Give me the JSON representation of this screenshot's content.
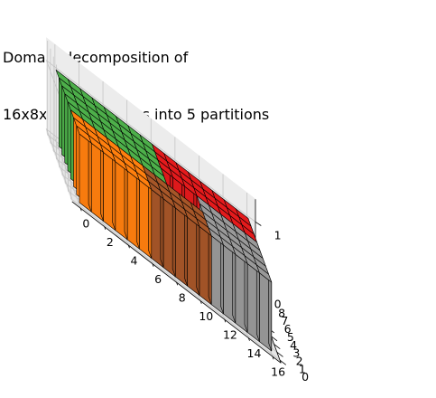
{
  "chart_data": {
    "type": "3d-voxel",
    "title_lines": [
      "Domain decomposition of",
      "16x8x1 subdivisions into 5 partitions"
    ],
    "grid": {
      "nx": 16,
      "ny": 8,
      "nz": 1
    },
    "x_ticks": [
      "0",
      "2",
      "4",
      "6",
      "8",
      "10",
      "12",
      "14",
      "16"
    ],
    "y_ticks": [
      "0",
      "1",
      "2",
      "3",
      "4",
      "5",
      "6",
      "7",
      "8"
    ],
    "z_ticks": [
      "0",
      "1"
    ],
    "partitions": [
      {
        "id": 0,
        "color": "#ff7f0e",
        "x_range": [
          0,
          6
        ],
        "y_range": [
          0,
          3
        ]
      },
      {
        "id": 1,
        "color": "#a65628",
        "x_range": [
          6,
          11
        ],
        "y_range": [
          0,
          3
        ]
      },
      {
        "id": 2,
        "color": "#999999",
        "x_range": [
          11,
          16
        ],
        "y_range": [
          0,
          5
        ]
      },
      {
        "id": 3,
        "color": "#e41a1c",
        "x_range": [
          8,
          16
        ],
        "y_range": [
          5,
          8
        ]
      },
      {
        "id": 4,
        "color": "#4daf4a",
        "x_range": [
          0,
          8
        ],
        "y_range": [
          3,
          8
        ]
      }
    ]
  }
}
